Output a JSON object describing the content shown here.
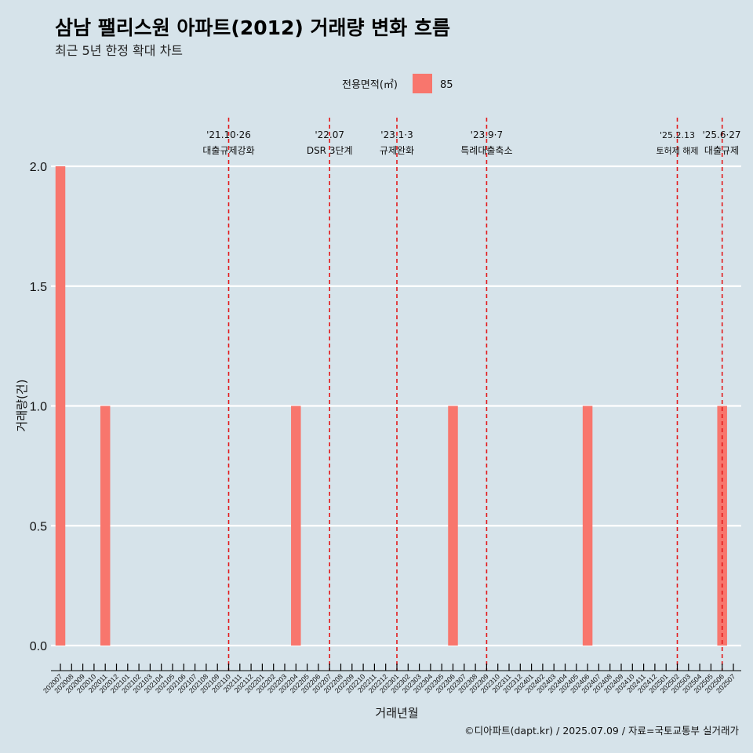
{
  "chart_data": {
    "type": "bar",
    "title": "삼남 팰리스원 아파트(2012) 거래량 변화 흐름",
    "subtitle": "최근 5년 한정 확대 차트",
    "xlabel": "거래년월",
    "ylabel": "거래량(건)",
    "ylim": [
      0,
      2
    ],
    "yticks": [
      "0.0",
      "0.5",
      "1.0",
      "1.5",
      "2.0"
    ],
    "grid": true,
    "legend": {
      "title": "전용면적(㎡)",
      "position": "top",
      "entries": [
        {
          "label": "85",
          "color": "#f8766d"
        }
      ]
    },
    "categories": [
      "202007",
      "202008",
      "202009",
      "202010",
      "202011",
      "202012",
      "202101",
      "202102",
      "202103",
      "202104",
      "202105",
      "202106",
      "202107",
      "202108",
      "202109",
      "202110",
      "202111",
      "202112",
      "202201",
      "202202",
      "202203",
      "202204",
      "202205",
      "202206",
      "202207",
      "202208",
      "202209",
      "202210",
      "202211",
      "202212",
      "202301",
      "202302",
      "202303",
      "202304",
      "202305",
      "202306",
      "202307",
      "202308",
      "202309",
      "202310",
      "202311",
      "202312",
      "202401",
      "202402",
      "202403",
      "202404",
      "202405",
      "202406",
      "202407",
      "202408",
      "202409",
      "202410",
      "202411",
      "202412",
      "202501",
      "202502",
      "202503",
      "202504",
      "202505",
      "202506",
      "202507"
    ],
    "series": [
      {
        "name": "85",
        "color": "#f8766d",
        "values": [
          2,
          0,
          0,
          0,
          1,
          0,
          0,
          0,
          0,
          0,
          0,
          0,
          0,
          0,
          0,
          0,
          0,
          0,
          0,
          0,
          0,
          1,
          0,
          0,
          0,
          0,
          0,
          0,
          0,
          0,
          0,
          0,
          0,
          0,
          0,
          1,
          0,
          0,
          0,
          0,
          0,
          0,
          0,
          0,
          0,
          0,
          0,
          1,
          0,
          0,
          0,
          0,
          0,
          0,
          0,
          0,
          0,
          0,
          0,
          1,
          0
        ]
      }
    ],
    "events": [
      {
        "month": "202110",
        "date": "'21.10·26",
        "label": "대출규제강화"
      },
      {
        "month": "202207",
        "date": "'22.07",
        "label": "DSR 3단계"
      },
      {
        "month": "202301",
        "date": "'23.1·3",
        "label": "규제완화"
      },
      {
        "month": "202309",
        "date": "'23.9·7",
        "label": "특례대출축소"
      },
      {
        "month": "202502",
        "date": "'25.2.13",
        "label": "토허제 해제",
        "small": true
      },
      {
        "month": "202506",
        "date": "'25.6·27",
        "label": "대출규제"
      }
    ],
    "caption": "©디아파트(dapt.kr) / 2025.07.09 / 자료=국토교통부 실거래가"
  }
}
